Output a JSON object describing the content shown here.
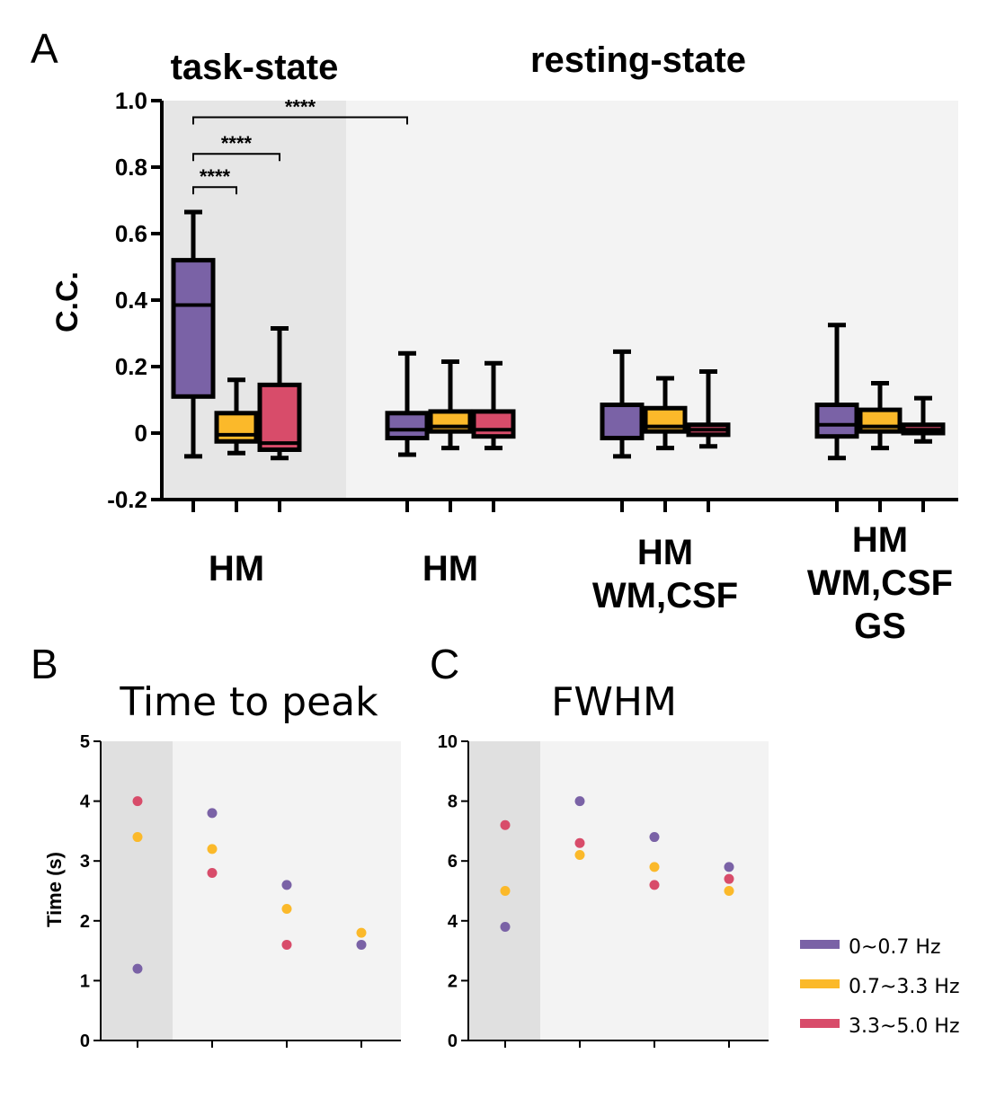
{
  "chart_data": [
    {
      "panel": "A",
      "type": "box",
      "group_titles": [
        "task-state",
        "resting-state"
      ],
      "ylabel": "C.C.",
      "ylim": [
        -0.2,
        1.0
      ],
      "yticks": [
        -0.2,
        0,
        0.2,
        0.4,
        0.6,
        0.8,
        1.0
      ],
      "ytick_labels": [
        "-0.2",
        "0",
        "0.2",
        "0.4",
        "0.6",
        "0.8",
        "1.0"
      ],
      "shaded_region": "task-state",
      "categories": [
        {
          "lines": [
            "HM"
          ]
        },
        {
          "lines": [
            "HM"
          ]
        },
        {
          "lines": [
            "HM",
            "WM,CSF"
          ]
        },
        {
          "lines": [
            "HM",
            "WM,CSF",
            "GS"
          ]
        }
      ],
      "series": [
        {
          "name": "0~0.7 Hz",
          "color": "#7a62a6",
          "boxes": [
            {
              "min": -0.07,
              "q1": 0.11,
              "median": 0.385,
              "q3": 0.52,
              "max": 0.665
            },
            {
              "min": -0.065,
              "q1": -0.015,
              "median": 0.01,
              "q3": 0.06,
              "max": 0.24
            },
            {
              "min": -0.07,
              "q1": -0.015,
              "median": -0.015,
              "q3": 0.085,
              "max": 0.245
            },
            {
              "min": -0.075,
              "q1": -0.01,
              "median": 0.025,
              "q3": 0.085,
              "max": 0.325
            }
          ]
        },
        {
          "name": "0.7~3.3 Hz",
          "color": "#fbb92a",
          "boxes": [
            {
              "min": -0.06,
              "q1": -0.025,
              "median": -0.005,
              "q3": 0.06,
              "max": 0.16
            },
            {
              "min": -0.045,
              "q1": 0.005,
              "median": 0.02,
              "q3": 0.065,
              "max": 0.215
            },
            {
              "min": -0.045,
              "q1": 0.005,
              "median": 0.02,
              "q3": 0.075,
              "max": 0.165
            },
            {
              "min": -0.045,
              "q1": 0.005,
              "median": 0.02,
              "q3": 0.07,
              "max": 0.15
            }
          ]
        },
        {
          "name": "3.3~5.0 Hz",
          "color": "#d84c6a",
          "boxes": [
            {
              "min": -0.075,
              "q1": -0.05,
              "median": -0.03,
              "q3": 0.145,
              "max": 0.315
            },
            {
              "min": -0.045,
              "q1": -0.01,
              "median": 0.01,
              "q3": 0.065,
              "max": 0.21
            },
            {
              "min": -0.04,
              "q1": -0.005,
              "median": 0.01,
              "q3": 0.025,
              "max": 0.185
            },
            {
              "min": -0.025,
              "q1": 0.0,
              "median": 0.01,
              "q3": 0.025,
              "max": 0.105
            }
          ]
        }
      ],
      "significance": [
        {
          "label": "****",
          "from": [
            0,
            0
          ],
          "to": [
            0,
            1
          ],
          "y": 0.74
        },
        {
          "label": "****",
          "from": [
            0,
            0
          ],
          "to": [
            0,
            2
          ],
          "y": 0.84
        },
        {
          "label": "****",
          "from": [
            0,
            0
          ],
          "to": [
            1,
            0
          ],
          "y": 0.95
        }
      ]
    },
    {
      "panel": "B",
      "type": "scatter",
      "title": "Time to peak",
      "ylabel": "Time (s)",
      "ylim": [
        0,
        5
      ],
      "yticks": [
        0,
        1,
        2,
        3,
        4,
        5
      ],
      "ytick_labels": [
        "0",
        "1",
        "2",
        "3",
        "4",
        "5"
      ],
      "x": [
        1,
        2,
        3,
        4
      ],
      "series": [
        {
          "name": "0~0.7 Hz",
          "color": "#7a62a6",
          "values": [
            1.2,
            3.8,
            2.6,
            1.6
          ]
        },
        {
          "name": "0.7~3.3 Hz",
          "color": "#fbb92a",
          "values": [
            3.4,
            3.2,
            2.2,
            1.8
          ]
        },
        {
          "name": "3.3~5.0 Hz",
          "color": "#d84c6a",
          "values": [
            4.0,
            2.8,
            1.6,
            null
          ]
        }
      ]
    },
    {
      "panel": "C",
      "type": "scatter",
      "title": "FWHM",
      "ylabel": "",
      "ylim": [
        0,
        10
      ],
      "yticks": [
        0,
        2,
        4,
        6,
        8,
        10
      ],
      "ytick_labels": [
        "0",
        "2",
        "4",
        "6",
        "8",
        "10"
      ],
      "x": [
        1,
        2,
        3,
        4
      ],
      "series": [
        {
          "name": "0~0.7 Hz",
          "color": "#7a62a6",
          "values": [
            3.8,
            8.0,
            6.8,
            5.8
          ]
        },
        {
          "name": "0.7~3.3 Hz",
          "color": "#fbb92a",
          "values": [
            5.0,
            6.2,
            5.8,
            5.0
          ]
        },
        {
          "name": "3.3~5.0 Hz",
          "color": "#d84c6a",
          "values": [
            7.2,
            6.6,
            5.2,
            5.4
          ]
        }
      ]
    }
  ],
  "panel_letters": {
    "a": "A",
    "b": "B",
    "c": "C"
  },
  "legend": [
    {
      "label": "0~0.7 Hz",
      "color": "#7a62a6"
    },
    {
      "label": "0.7~3.3 Hz",
      "color": "#fbb92a"
    },
    {
      "label": "3.3~5.0 Hz",
      "color": "#d84c6a"
    }
  ]
}
